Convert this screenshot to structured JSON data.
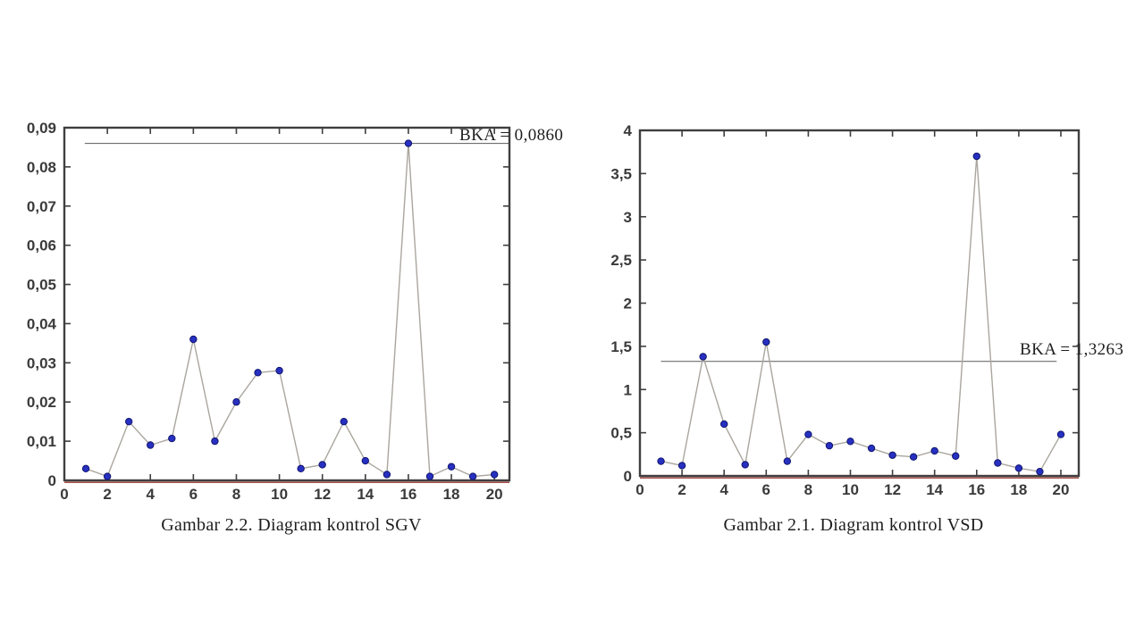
{
  "page": {
    "background": "#ffffff"
  },
  "chart_data": [
    {
      "id": "sgv",
      "type": "line",
      "title": "",
      "caption": "Gambar 2.2. Diagram kontrol SGV",
      "series_name": "SGV",
      "x": [
        1,
        2,
        3,
        4,
        5,
        6,
        7,
        8,
        9,
        10,
        11,
        12,
        13,
        14,
        15,
        16,
        17,
        18,
        19,
        20
      ],
      "values": [
        0.003,
        0.001,
        0.015,
        0.009,
        0.0107,
        0.036,
        0.01,
        0.02,
        0.0275,
        0.028,
        0.003,
        0.004,
        0.015,
        0.005,
        0.0015,
        0.086,
        0.001,
        0.0035,
        0.001,
        0.0015
      ],
      "bka": {
        "label": "BKA = 0,0860",
        "value": 0.086,
        "x_start": 0.95,
        "x_end": 20.7
      },
      "bkb_value": 0,
      "xlim": [
        0,
        20.7
      ],
      "ylim": [
        0,
        0.09
      ],
      "x_ticks": [
        0,
        2,
        4,
        6,
        8,
        10,
        12,
        14,
        16,
        18,
        20
      ],
      "x_tick_labels": [
        "0",
        "2",
        "4",
        "6",
        "8",
        "10",
        "12",
        "14",
        "16",
        "18",
        "20"
      ],
      "y_ticks": [
        0,
        0.01,
        0.02,
        0.03,
        0.04,
        0.05,
        0.06,
        0.07,
        0.08,
        0.09
      ],
      "y_tick_labels": [
        "0",
        "0,01",
        "0,02",
        "0,03",
        "0,04",
        "0,05",
        "0,06",
        "0,07",
        "0,08",
        "0,09"
      ],
      "grid": false,
      "legend": "none",
      "colors": {
        "marker": "#2730c0",
        "marker_edge": "#10156e",
        "line": "#aaa69e",
        "bka_line": "#6e6e6e",
        "bkb_line": "#a3524a",
        "axis": "#3f3f3f",
        "tick_text": "#3a3a3a"
      }
    },
    {
      "id": "vsd",
      "type": "line",
      "title": "",
      "caption": "Gambar 2.1. Diagram kontrol VSD",
      "series_name": "VSD",
      "x": [
        1,
        2,
        3,
        4,
        5,
        6,
        7,
        8,
        9,
        10,
        11,
        12,
        13,
        14,
        15,
        16,
        17,
        18,
        19,
        20
      ],
      "values": [
        0.17,
        0.12,
        1.38,
        0.6,
        0.13,
        1.55,
        0.17,
        0.48,
        0.35,
        0.4,
        0.32,
        0.24,
        0.22,
        0.29,
        0.23,
        3.7,
        0.15,
        0.09,
        0.05,
        0.48
      ],
      "bka": {
        "label": "BKA = 1,3263",
        "value": 1.3263,
        "x_start": 1.0,
        "x_end": 19.8
      },
      "bkb_value": 0,
      "xlim": [
        0,
        20.85
      ],
      "ylim": [
        0,
        4
      ],
      "x_ticks": [
        0,
        2,
        4,
        6,
        8,
        10,
        12,
        14,
        16,
        18,
        20
      ],
      "x_tick_labels": [
        "0",
        "2",
        "4",
        "6",
        "8",
        "10",
        "12",
        "14",
        "16",
        "18",
        "20"
      ],
      "y_ticks": [
        0,
        0.5,
        1,
        1.5,
        2,
        2.5,
        3,
        3.5,
        4
      ],
      "y_tick_labels": [
        "0",
        "0,5",
        "1",
        "1,5",
        "2",
        "2,5",
        "3",
        "3,5",
        "4"
      ],
      "grid": false,
      "legend": "none",
      "colors": {
        "marker": "#2730c0",
        "marker_edge": "#10156e",
        "line": "#aaa69e",
        "bka_line": "#6e6e6e",
        "bkb_line": "#a3524a",
        "axis": "#3f3f3f",
        "tick_text": "#3a3a3a"
      }
    }
  ]
}
